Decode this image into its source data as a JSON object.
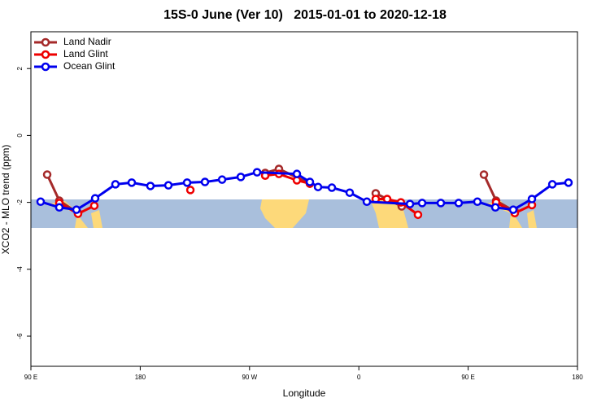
{
  "chart_data": {
    "type": "line",
    "title": "15S-0 June (Ver 10)   2015-01-01 to 2020-12-18",
    "xlabel": "Longitude",
    "ylabel": "XCO2 - MLO trend (ppm)",
    "xlim": [
      90,
      540
    ],
    "ylim": [
      -6.9,
      3.1
    ],
    "xticks": [
      {
        "value": 90,
        "label": "90 E"
      },
      180,
      {
        "value": 270,
        "label": "90 W"
      },
      {
        "value": 360,
        "label": "0"
      },
      {
        "value": 450,
        "label": "90 E"
      },
      {
        "value": 540,
        "label": "180"
      }
    ],
    "yticks": [
      -6,
      -4,
      -2,
      0,
      2
    ],
    "legend": "top-left",
    "series": [
      {
        "name": "Land Nadir",
        "color": "#a52a2a",
        "x": [
          103.4,
          113.4,
          128.8,
          null,
          282.9,
          294.2,
          319.7,
          null,
          373.9,
          395.3,
          null,
          463,
          473,
          488.4
        ],
        "values": [
          -1.17,
          -1.95,
          -2.32,
          null,
          -1.12,
          -1.0,
          -1.44,
          null,
          -1.73,
          -2.12,
          null,
          -1.17,
          -1.95,
          -2.27
        ]
      },
      {
        "name": "Land Glint",
        "color": "#ee0000",
        "x": [
          113.4,
          128.8,
          142.2,
          null,
          221.3,
          null,
          282.9,
          294.2,
          309,
          319.7,
          null,
          373.9,
          383.3,
          394.6,
          408.7,
          null,
          473,
          488.4,
          502.5
        ],
        "values": [
          -2.02,
          -2.34,
          -2.1,
          null,
          -1.63,
          null,
          -1.2,
          -1.15,
          -1.34,
          -1.44,
          null,
          -1.9,
          -1.9,
          -2.0,
          -2.37,
          null,
          -2.0,
          -2.32,
          -2.08
        ]
      },
      {
        "name": "Ocean Glint",
        "color": "#0000ee",
        "x": [
          98,
          113.4,
          127.5,
          142.9,
          159.6,
          173,
          188.4,
          203.2,
          218.6,
          233.3,
          247.4,
          262.8,
          276.2,
          309,
          319.7,
          326.4,
          337.8,
          352.5,
          366.6,
          402.1,
          412.1,
          427.5,
          442.2,
          457.6,
          472.4,
          487.1,
          502.5,
          519.3,
          532.6
        ],
        "values": [
          -1.98,
          -2.15,
          -2.22,
          -1.88,
          -1.46,
          -1.41,
          -1.51,
          -1.49,
          -1.41,
          -1.39,
          -1.32,
          -1.24,
          -1.1,
          -1.15,
          -1.39,
          -1.54,
          -1.56,
          -1.71,
          -1.98,
          -2.05,
          -2.02,
          -2.02,
          -2.02,
          -1.98,
          -2.15,
          -2.22,
          -1.9,
          -1.46,
          -1.41
        ]
      }
    ]
  }
}
